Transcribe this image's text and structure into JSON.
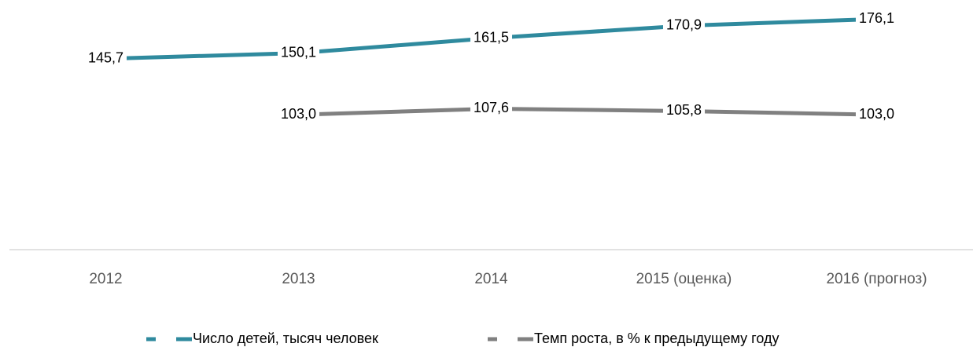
{
  "chart_data": {
    "type": "line",
    "categories": [
      "2012",
      "2013",
      "2014",
      "2015 (оценка)",
      "2016 (прогноз)"
    ],
    "series": [
      {
        "name": "Число детей, тысяч человек",
        "color": "#2f8a9e",
        "values": [
          145.7,
          150.1,
          161.5,
          170.9,
          176.1
        ],
        "value_labels": [
          "145,7",
          "150,1",
          "161,5",
          "170,9",
          "176,1"
        ]
      },
      {
        "name": "Темп роста, в % к предыдущему году",
        "color": "#808080",
        "values": [
          null,
          103.0,
          107.6,
          105.8,
          103.0
        ],
        "value_labels": [
          null,
          "103,0",
          "107,6",
          "105,8",
          "103,0"
        ]
      }
    ],
    "ylim": [
      0,
      190
    ],
    "legend": "bottom"
  }
}
